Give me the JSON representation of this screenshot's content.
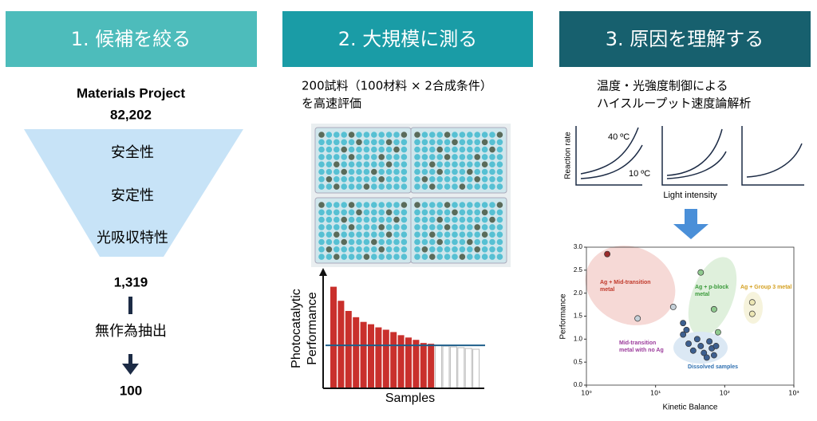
{
  "headers": [
    "1. 候補を絞る",
    "2. 大規模に測る",
    "3. 原因を理解する"
  ],
  "panel1": {
    "source": "Materials Project",
    "count": "82,202",
    "filters": [
      "安全性",
      "安定性",
      "光吸収特性"
    ],
    "after_filter": "1,319",
    "method": "無作為抽出",
    "final": "100"
  },
  "panel2": {
    "description": [
      "200試料（100材料 × 2合成条件）",
      "を高速評価"
    ]
  },
  "panel3": {
    "description": [
      "温度・光強度制御による",
      "ハイスループット速度論解析"
    ],
    "kinetics": {
      "ylabel": "Reaction rate",
      "xlabel": "Light intensity",
      "high_temp": "40 ºC",
      "low_temp": "10 ºC"
    }
  },
  "chart_data": [
    {
      "type": "bar",
      "ylabel": [
        "Photocatalytic",
        "Performance"
      ],
      "xlabel": "Samples",
      "categories": [
        null,
        null,
        null,
        null,
        null,
        null,
        null,
        null,
        null,
        null,
        null,
        null,
        null,
        null,
        null,
        null,
        null,
        null,
        null,
        null
      ],
      "series": [
        {
          "color": "#c9302c",
          "values": [
            130,
            112,
            99,
            91,
            85,
            82,
            78,
            75,
            72,
            68,
            65,
            62,
            58,
            57,
            null,
            null,
            null,
            null,
            null,
            null
          ]
        },
        {
          "color": "#ffffff",
          "values": [
            null,
            null,
            null,
            null,
            null,
            null,
            null,
            null,
            null,
            null,
            null,
            null,
            null,
            null,
            55,
            54,
            53,
            52,
            51,
            50
          ]
        }
      ],
      "ylim": [
        0,
        150
      ],
      "hline": 55,
      "hline_color": "#1f5f8b"
    },
    {
      "type": "scatter",
      "xlabel": "Kinetic Balance",
      "ylabel": "Performance",
      "log_x": true,
      "xlim": [
        1,
        1000
      ],
      "ylim": [
        0,
        3
      ],
      "xticks": [
        {
          "value": 1,
          "label": "10⁰"
        },
        {
          "value": 10,
          "label": "10¹"
        },
        {
          "value": 100,
          "label": "10²"
        },
        {
          "value": 1000,
          "label": "10³"
        }
      ],
      "yticks": [
        {
          "value": 0,
          "label": "0.0"
        },
        0.5,
        {
          "value": 1,
          "label": "1.0"
        },
        1.5,
        {
          "value": 2,
          "label": "2.0"
        },
        2.5,
        {
          "value": 3,
          "label": "3.0"
        }
      ],
      "series": [
        {
          "name": "Ag + Mid-transition metal",
          "color": "#9b2c2c",
          "label_color": "#c0392b",
          "x": [
            2
          ],
          "y": [
            2.85
          ]
        },
        {
          "name": "Mid-transition metal with no Ag",
          "color": "#c5d0d8",
          "label_color": "#9b3b9b",
          "x": [
            5.5,
            18
          ],
          "y": [
            1.45,
            1.7
          ]
        },
        {
          "name": "Ag + p-block metal",
          "color": "#8fc98f",
          "label_color": "#3a9a3a",
          "x": [
            45,
            70,
            80
          ],
          "y": [
            2.45,
            1.65,
            1.15
          ]
        },
        {
          "name": "Ag + Group 3 metal",
          "color": "#ece6b4",
          "label_color": "#d4a020",
          "x": [
            250,
            250
          ],
          "y": [
            1.8,
            1.55
          ]
        },
        {
          "name": "Dissolved samples",
          "color": "#3d5f8f",
          "label_color": "#2e6fb0",
          "x": [
            25,
            25,
            28,
            30,
            35,
            40,
            45,
            50,
            55,
            60,
            65,
            70,
            75
          ],
          "y": [
            1.35,
            1.1,
            1.2,
            0.9,
            0.75,
            1.0,
            0.85,
            0.7,
            0.6,
            0.95,
            0.8,
            0.65,
            0.85
          ]
        }
      ]
    }
  ]
}
